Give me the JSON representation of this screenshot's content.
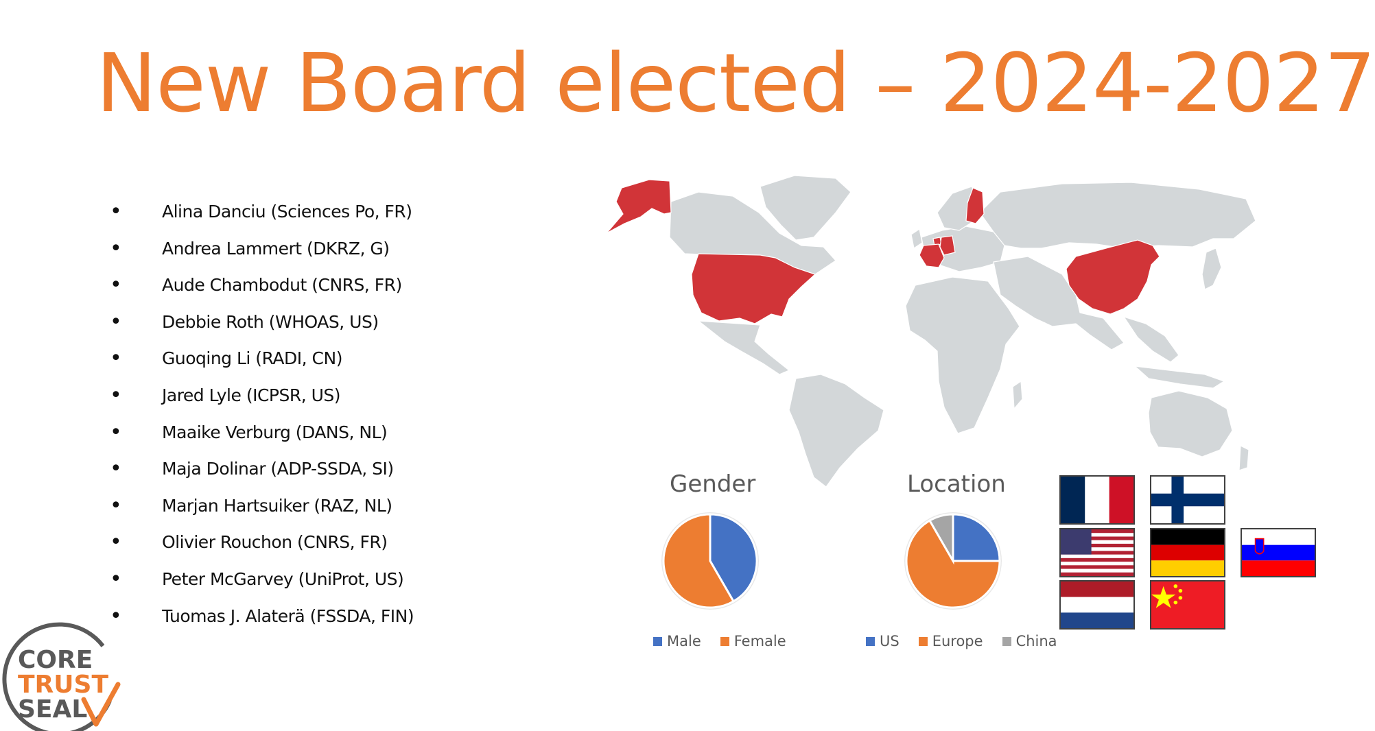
{
  "title": "New Board elected – 2024-2027",
  "members": [
    "Alina Danciu (Sciences Po, FR)",
    "Andrea Lammert (DKRZ, G)",
    "Aude Chambodut (CNRS, FR)",
    "Debbie Roth (WHOAS, US)",
    "Guoqing Li (RADI, CN)",
    "Jared Lyle (ICPSR, US)",
    "Maaike Verburg (DANS, NL)",
    "Maja Dolinar (ADP-SSDA, SI)",
    "Marjan Hartsuiker (RAZ, NL)",
    "Olivier Rouchon (CNRS, FR)",
    "Peter McGarvey (UniProt, US)",
    "Tuomas J. Alaterä (FSSDA, FIN)"
  ],
  "bullet": "•",
  "colors": {
    "accent": "#ED7D31",
    "blue": "#4472C4",
    "gray": "#A5A5A5",
    "map_land": "#D3D7D9",
    "map_highlight": "#D13438"
  },
  "map": {
    "highlighted_regions": [
      "US",
      "France",
      "Germany",
      "Netherlands",
      "Finland",
      "China"
    ]
  },
  "chart_data": [
    {
      "type": "pie",
      "title": "Gender",
      "categories": [
        "Male",
        "Female"
      ],
      "values": [
        5,
        7
      ],
      "colors": [
        "#4472C4",
        "#ED7D31"
      ],
      "legend": "bottom"
    },
    {
      "type": "pie",
      "title": "Location",
      "categories": [
        "US",
        "Europe",
        "China"
      ],
      "values": [
        3,
        8,
        1
      ],
      "colors": [
        "#4472C4",
        "#ED7D31",
        "#A5A5A5"
      ],
      "legend": "bottom"
    }
  ],
  "flags": [
    "France",
    "Finland",
    "United States",
    "Germany",
    "Slovenia",
    "Netherlands",
    "China"
  ],
  "logo": {
    "lines": [
      "CORE",
      "TRUST",
      "SEAL"
    ],
    "colors": [
      "#595959",
      "#ED7D31",
      "#595959"
    ]
  }
}
